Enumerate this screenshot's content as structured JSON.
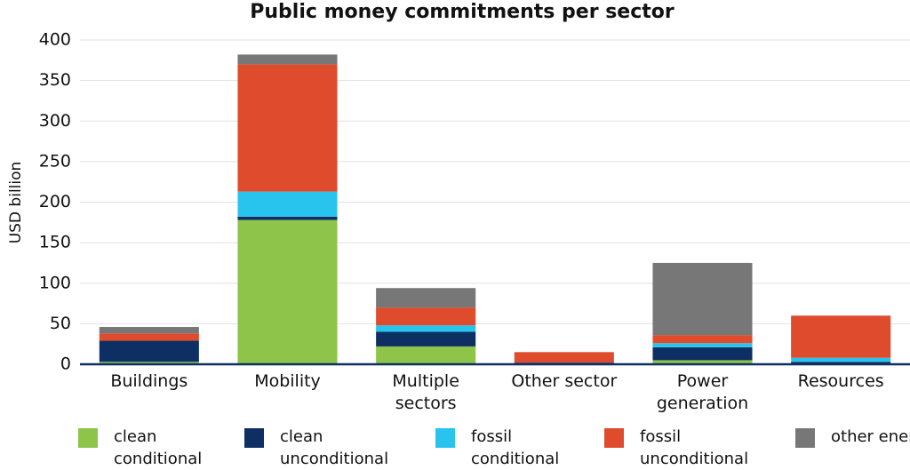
{
  "chart_data": {
    "type": "stacked_bar",
    "title": "Public money commitments per sector",
    "y_label": "USD billion",
    "categories": [
      "Buildings",
      "Mobility",
      "Multiple sectors",
      "Other sector",
      "Power generation",
      "Resources"
    ],
    "series": [
      {
        "name": "clean conditional",
        "color": "#8dc449",
        "values": [
          3,
          178,
          22,
          0,
          5,
          0
        ]
      },
      {
        "name": "clean unconditional",
        "color": "#0e2f63",
        "values": [
          26,
          4,
          18,
          2,
          16,
          3
        ]
      },
      {
        "name": "fossil conditional",
        "color": "#29c4ee",
        "values": [
          0,
          31,
          8,
          0,
          5,
          5
        ]
      },
      {
        "name": "fossil unconditional",
        "color": "#df4b2d",
        "values": [
          9,
          157,
          22,
          13,
          10,
          52
        ]
      },
      {
        "name": "other energy",
        "color": "#777777",
        "values": [
          8,
          12,
          24,
          0,
          89,
          0
        ]
      }
    ],
    "ylim": [
      0,
      400
    ],
    "yticks": [
      0,
      50,
      100,
      150,
      200,
      250,
      300,
      350,
      400
    ],
    "grid": true
  }
}
